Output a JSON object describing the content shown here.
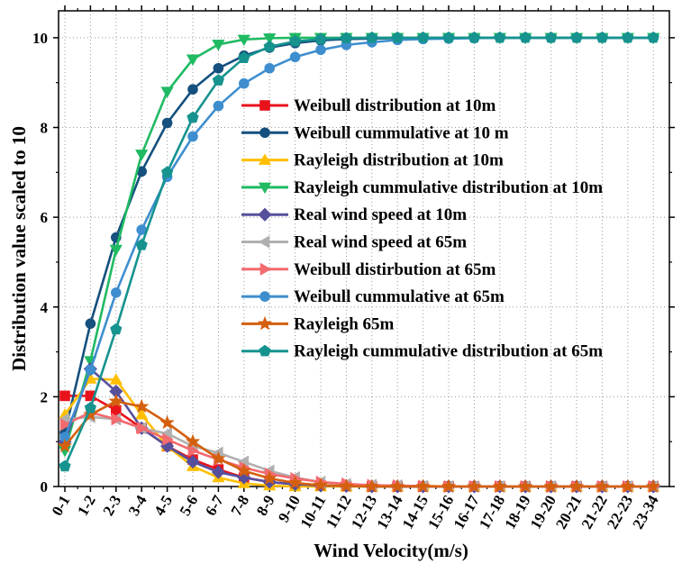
{
  "chart_data": {
    "type": "line",
    "title": "",
    "xlabel": "Wind Velocity(m/s)",
    "ylabel": "Distribution value scaled to 10",
    "ylim": [
      0,
      10.6
    ],
    "yticks": [
      0,
      2,
      4,
      6,
      8,
      10
    ],
    "grid": true,
    "legend_position": "right",
    "categories": [
      "0-1",
      "1-2",
      "2-3",
      "3-4",
      "4-5",
      "5-6",
      "6-7",
      "7-8",
      "8-9",
      "9-10",
      "10-11",
      "11-12",
      "12-13",
      "13-14",
      "14-15",
      "15-16",
      "16-17",
      "17-18",
      "18-19",
      "19-20",
      "20-21",
      "21-22",
      "22-23",
      "23-34"
    ],
    "series": [
      {
        "name": "Weibull distribution at 10m",
        "color": "#e8121b",
        "marker": "square",
        "values": [
          2.02,
          2.02,
          1.7,
          1.3,
          0.9,
          0.6,
          0.38,
          0.2,
          0.1,
          0.05,
          0.02,
          0.01,
          0.0,
          0,
          0,
          0,
          0,
          0,
          0,
          0,
          0,
          0,
          0,
          0
        ]
      },
      {
        "name": "Weibull cummulative at 10 m",
        "color": "#15507e",
        "marker": "circle",
        "values": [
          1.2,
          3.63,
          5.55,
          7.02,
          8.1,
          8.85,
          9.32,
          9.6,
          9.78,
          9.88,
          9.94,
          9.97,
          9.98,
          9.99,
          10,
          10,
          10,
          10,
          10,
          10,
          10,
          10,
          10,
          10
        ]
      },
      {
        "name": "Rayleigh distribution at 10m",
        "color": "#ffbf00",
        "marker": "triangle-up",
        "values": [
          1.6,
          2.4,
          2.38,
          1.6,
          0.9,
          0.45,
          0.2,
          0.07,
          0.02,
          0.0,
          0,
          0,
          0,
          0,
          0.02,
          0,
          0,
          0,
          0,
          0,
          0,
          0,
          0,
          0
        ]
      },
      {
        "name": "Rayleigh cummulative distribution at 10m",
        "color": "#1fba62",
        "marker": "triangle-down",
        "values": [
          0.8,
          2.8,
          5.28,
          7.4,
          8.8,
          9.52,
          9.85,
          9.96,
          9.99,
          10,
          10,
          10,
          10,
          10,
          10,
          10,
          10,
          10,
          10,
          10,
          10,
          10,
          10,
          10
        ]
      },
      {
        "name": "Real wind speed at 10m",
        "color": "#56509c",
        "marker": "diamond",
        "values": [
          1.0,
          2.62,
          2.12,
          1.3,
          0.9,
          0.55,
          0.32,
          0.2,
          0.1,
          0.05,
          0.02,
          0.01,
          0,
          0,
          0,
          0,
          0,
          0,
          0,
          0,
          0,
          0,
          0,
          0
        ]
      },
      {
        "name": "Real wind speed at 65m",
        "color": "#b0b0b0",
        "marker": "triangle-left",
        "values": [
          1.5,
          1.55,
          1.5,
          1.3,
          1.18,
          0.9,
          0.75,
          0.55,
          0.35,
          0.2,
          0.1,
          0.05,
          0.03,
          0.02,
          0.01,
          0,
          0,
          0,
          0,
          0,
          0,
          0,
          0,
          0
        ]
      },
      {
        "name": "Weibull distirbution at 65m",
        "color": "#f36a6f",
        "marker": "triangle-right",
        "values": [
          1.38,
          1.65,
          1.5,
          1.3,
          1.05,
          0.8,
          0.6,
          0.42,
          0.28,
          0.18,
          0.1,
          0.06,
          0.03,
          0.02,
          0.01,
          0,
          0,
          0,
          0,
          0,
          0,
          0,
          0,
          0
        ]
      },
      {
        "name": "Weibull cummulative at 65m",
        "color": "#3e8ecf",
        "marker": "circle",
        "values": [
          1.1,
          2.6,
          4.32,
          5.72,
          6.9,
          7.8,
          8.48,
          8.98,
          9.32,
          9.57,
          9.73,
          9.84,
          9.9,
          9.95,
          9.97,
          9.98,
          9.99,
          10,
          10,
          10,
          10,
          10,
          10,
          10
        ]
      },
      {
        "name": "Rayleigh 65m",
        "color": "#d4600e",
        "marker": "star",
        "values": [
          0.9,
          1.6,
          1.9,
          1.78,
          1.42,
          1.0,
          0.62,
          0.35,
          0.18,
          0.08,
          0.03,
          0.01,
          0,
          0,
          0,
          0,
          0,
          0,
          0,
          0,
          0,
          0,
          0,
          0
        ]
      },
      {
        "name": "Rayleigh cummulative distribution at 65m",
        "color": "#16938f",
        "marker": "pentagon",
        "values": [
          0.45,
          1.75,
          3.5,
          5.38,
          7.0,
          8.22,
          9.05,
          9.55,
          9.8,
          9.92,
          9.97,
          9.99,
          10,
          10,
          10,
          10,
          10,
          10,
          10,
          10,
          10,
          10,
          10,
          10
        ]
      }
    ]
  }
}
